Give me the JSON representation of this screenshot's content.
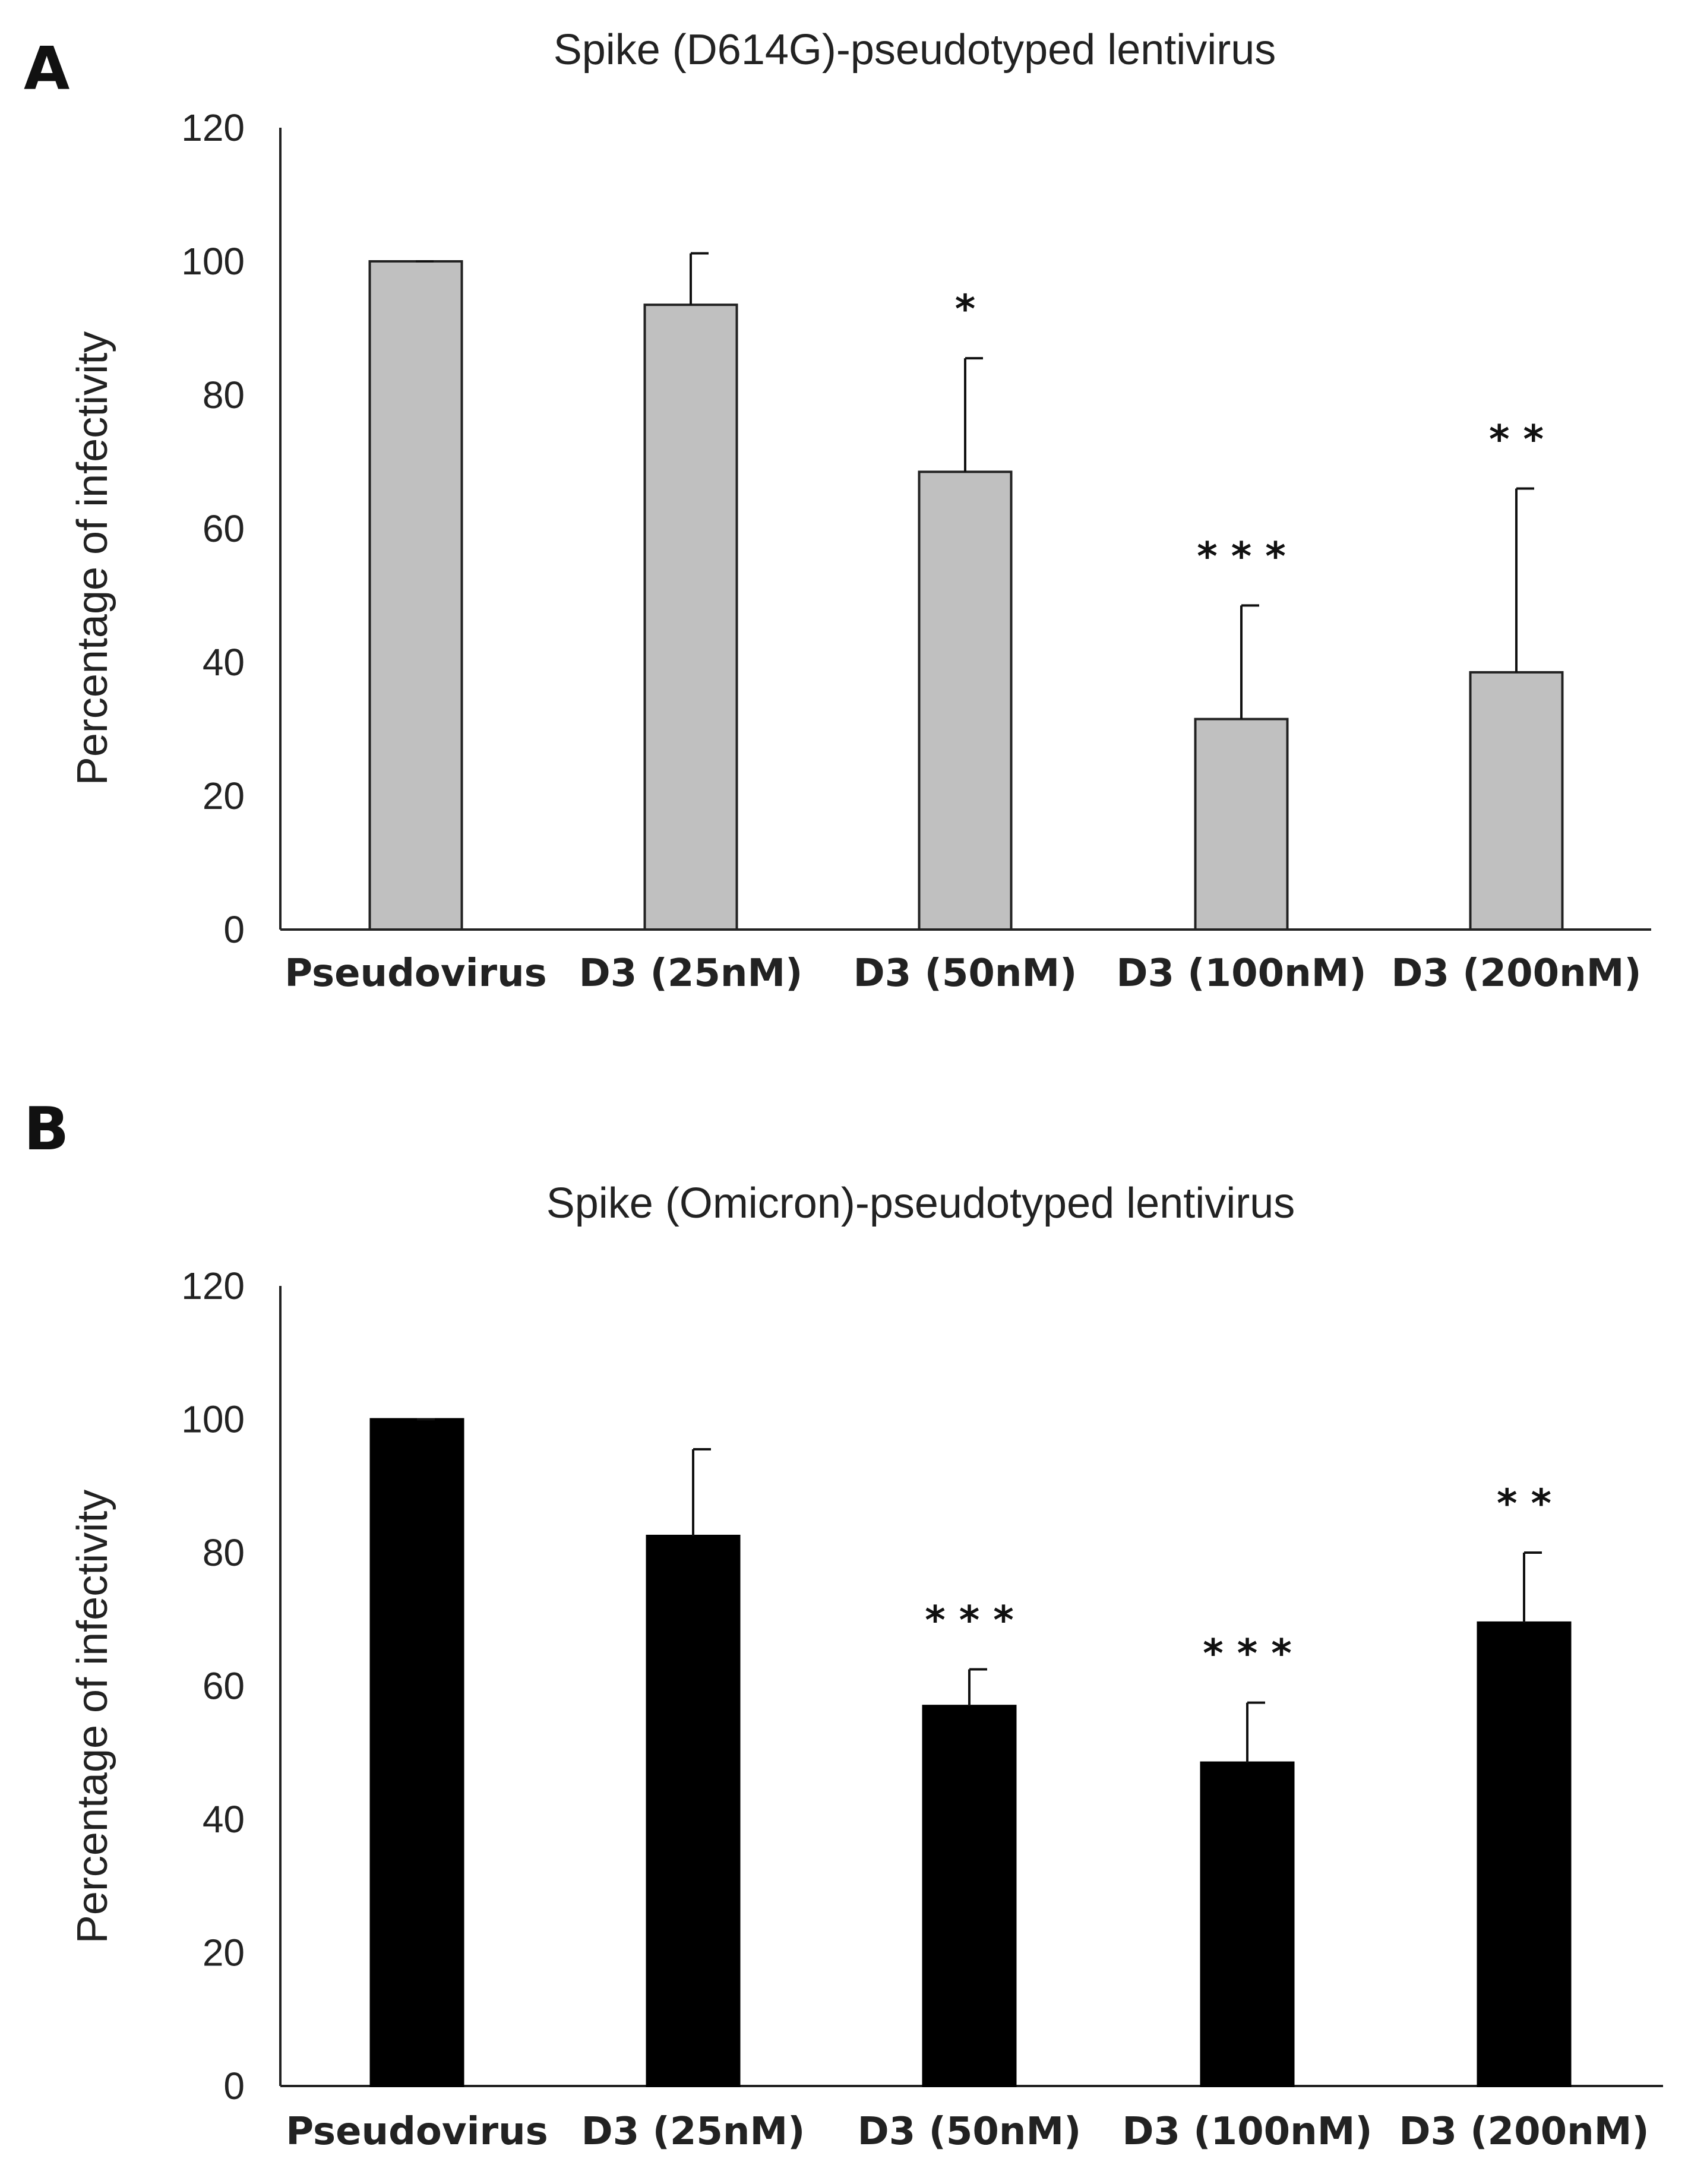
{
  "chart_data": [
    {
      "type": "bar",
      "panel_label": "A",
      "title": "Spike (D614G)-pseudotyped lentivirus",
      "ylabel": "Percentage of infectivity",
      "xlabel": "",
      "ylim": [
        0,
        120
      ],
      "yticks": [
        "0",
        "20",
        "40",
        "60",
        "80",
        "100",
        "120"
      ],
      "categories": [
        "Pseudovirus",
        "D3 (25nM)",
        "D3 (50nM)",
        "D3 (100nM)",
        "D3 (200nM)"
      ],
      "values": [
        100,
        93.5,
        68.5,
        31.5,
        38.5
      ],
      "errors": [
        0,
        7.7,
        17,
        17,
        27.5
      ],
      "significance": [
        "",
        "",
        "*",
        "***",
        "**"
      ],
      "bar_color": "#c0c0c0",
      "bar_edge": "#222222"
    },
    {
      "type": "bar",
      "panel_label": "B",
      "title": "Spike (Omicron)-pseudotyped lentivirus",
      "ylabel": "Percentage of infectivity",
      "xlabel": "",
      "ylim": [
        0,
        120
      ],
      "yticks": [
        "0",
        "20",
        "40",
        "60",
        "80",
        "100",
        "120"
      ],
      "categories": [
        "Pseudovirus",
        "D3 (25nM)",
        "D3 (50nM)",
        "D3 (100nM)",
        "D3 (200nM)"
      ],
      "values": [
        100,
        82.5,
        57,
        48.5,
        69.5
      ],
      "errors": [
        0,
        13,
        5.5,
        9,
        10.5
      ],
      "significance": [
        "",
        "",
        "***",
        "***",
        "**"
      ],
      "bar_color": "#000000",
      "bar_edge": "#000000"
    }
  ]
}
